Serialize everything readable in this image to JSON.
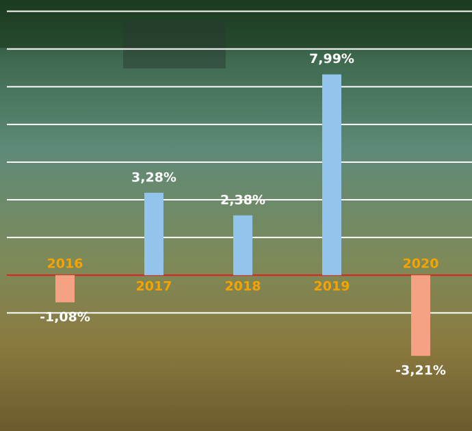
{
  "chart_data": {
    "type": "bar",
    "categories": [
      "2016",
      "2017",
      "2018",
      "2019",
      "2020"
    ],
    "values": [
      -1.08,
      3.28,
      2.38,
      7.99,
      -3.21
    ],
    "value_labels": [
      "-1,08%",
      "3,28%",
      "2,38%",
      "7,99%",
      "-3,21%"
    ],
    "positive_color": "#93c5ec",
    "negative_color": "#f5a183",
    "ylim": [
      -6.2,
      10.95
    ],
    "yticks": [
      -1.5,
      0,
      1.5,
      3,
      4.5,
      6,
      7.5,
      9,
      10.5
    ],
    "grid": true,
    "grid_color": "#ffffff",
    "zero_line_color": "#e02020"
  }
}
